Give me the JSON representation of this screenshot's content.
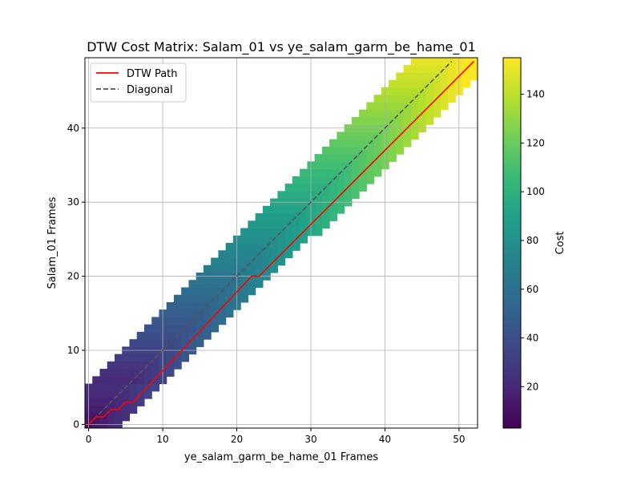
{
  "chart_data": {
    "type": "heatmap",
    "title": "DTW Cost Matrix: Salam_01 vs ye_salam_garm_be_hame_01",
    "xlabel": "ye_salam_garm_be_hame_01 Frames",
    "ylabel": "Salam_01 Frames",
    "xlim": [
      -0.5,
      52.5
    ],
    "ylim": [
      -0.5,
      49.5
    ],
    "x_ticks": [
      0,
      10,
      20,
      30,
      40,
      50
    ],
    "y_ticks": [
      0,
      10,
      20,
      30,
      40
    ],
    "n_cols": 53,
    "n_rows": 50,
    "grid": true,
    "legend_position": "upper-left",
    "colormap": "viridis",
    "band": {
      "rows_lower_edge": [
        [
          0,
          0,
          4
        ],
        [
          5,
          0,
          1
        ],
        [
          6,
          1,
          1
        ],
        [
          7,
          2,
          1
        ],
        [
          8,
          3,
          2
        ],
        [
          9,
          4,
          3
        ],
        [
          10,
          5,
          4
        ],
        [
          49,
          44,
          52
        ]
      ],
      "rows_upper_edge": [
        [
          0,
          4
        ],
        [
          1,
          5
        ],
        [
          2,
          6
        ],
        [
          3,
          7
        ],
        [
          4,
          8
        ],
        [
          5,
          9
        ],
        [
          47,
          52
        ],
        [
          49,
          52
        ]
      ]
    },
    "cost_scale": {
      "min": 3,
      "max": 155,
      "per_step": 3.0
    },
    "colorbar": {
      "label": "Cost",
      "min": 3,
      "max": 155,
      "ticks": [
        20,
        40,
        60,
        80,
        100,
        120,
        140
      ]
    },
    "series": [
      {
        "name": "DTW Path",
        "color": "#ff0000",
        "style": "solid",
        "points": [
          [
            0,
            0
          ],
          [
            1,
            1
          ],
          [
            2,
            1
          ],
          [
            3,
            2
          ],
          [
            4,
            2
          ],
          [
            5,
            3
          ],
          [
            6,
            3
          ],
          [
            22,
            20
          ],
          [
            23,
            20
          ],
          [
            52,
            49
          ]
        ]
      },
      {
        "name": "Diagonal",
        "color": "#555555",
        "style": "dashed",
        "points": [
          [
            0,
            0
          ],
          [
            49,
            49
          ]
        ]
      }
    ]
  }
}
